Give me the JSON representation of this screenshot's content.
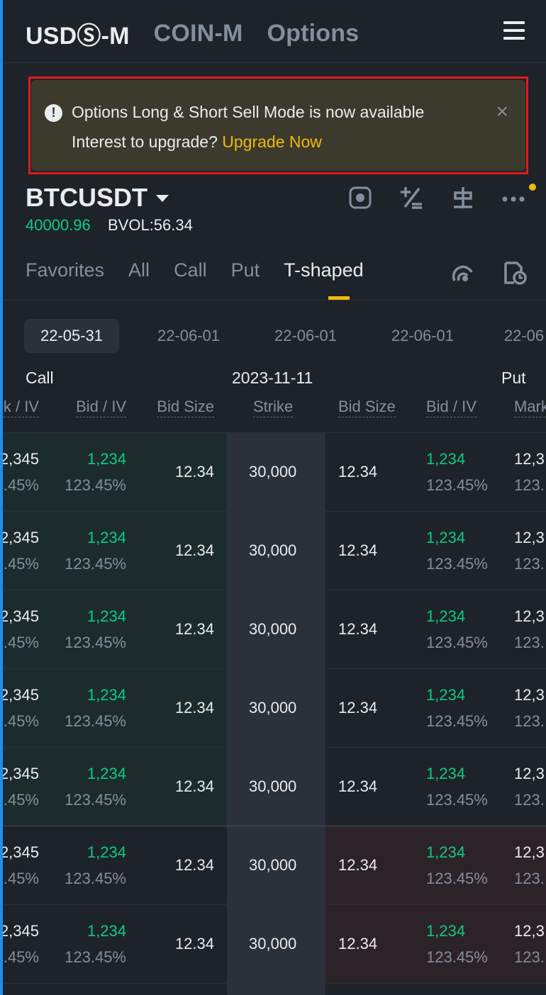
{
  "header": {
    "tabs": [
      "USDⓈ-M",
      "COIN-M",
      "Options"
    ]
  },
  "banner": {
    "message": "Options Long & Short Sell Mode is now available",
    "prompt": "Interest to upgrade? ",
    "link": "Upgrade Now",
    "close": "×"
  },
  "symbol": {
    "name": "BTCUSDT",
    "price": "40000.96",
    "bvol": "BVOL:56.34"
  },
  "sub_tabs": [
    "Favorites",
    "All",
    "Call",
    "Put",
    "T-shaped"
  ],
  "dates": [
    "22-05-31",
    "22-06-01",
    "22-06-01",
    "22-06-01",
    "22-06"
  ],
  "table": {
    "call_label": "Call",
    "expiry": "2023-11-11",
    "put_label": "Put",
    "columns": [
      "k / IV",
      "Bid / IV",
      "Bid Size",
      "Strike",
      "Bid Size",
      "Bid / IV",
      "Mark"
    ],
    "rows": [
      {
        "mark": "2,345",
        "mark_iv": ".45%",
        "bid": "1,234",
        "bid_iv": "123.45%",
        "bid_size": "12.34",
        "strike": "30,000",
        "put_bid_size": "12.34",
        "put_bid": "1,234",
        "put_bid_iv": "123.45%",
        "put_mark": "12,3",
        "put_mark_iv": "123."
      },
      {
        "mark": "2,345",
        "mark_iv": ".45%",
        "bid": "1,234",
        "bid_iv": "123.45%",
        "bid_size": "12.34",
        "strike": "30,000",
        "put_bid_size": "12.34",
        "put_bid": "1,234",
        "put_bid_iv": "123.45%",
        "put_mark": "12,3",
        "put_mark_iv": "123."
      },
      {
        "mark": "2,345",
        "mark_iv": ".45%",
        "bid": "1,234",
        "bid_iv": "123.45%",
        "bid_size": "12.34",
        "strike": "30,000",
        "put_bid_size": "12.34",
        "put_bid": "1,234",
        "put_bid_iv": "123.45%",
        "put_mark": "12,3",
        "put_mark_iv": "123."
      },
      {
        "mark": "2,345",
        "mark_iv": ".45%",
        "bid": "1,234",
        "bid_iv": "123.45%",
        "bid_size": "12.34",
        "strike": "30,000",
        "put_bid_size": "12.34",
        "put_bid": "1,234",
        "put_bid_iv": "123.45%",
        "put_mark": "12,3",
        "put_mark_iv": "123."
      },
      {
        "mark": "2,345",
        "mark_iv": ".45%",
        "bid": "1,234",
        "bid_iv": "123.45%",
        "bid_size": "12.34",
        "strike": "30,000",
        "put_bid_size": "12.34",
        "put_bid": "1,234",
        "put_bid_iv": "123.45%",
        "put_mark": "12,3",
        "put_mark_iv": "123."
      },
      {
        "mark": "2,345",
        "mark_iv": ".45%",
        "bid": "1,234",
        "bid_iv": "123.45%",
        "bid_size": "12.34",
        "strike": "30,000",
        "put_bid_size": "12.34",
        "put_bid": "1,234",
        "put_bid_iv": "123.45%",
        "put_mark": "12,3",
        "put_mark_iv": "123."
      },
      {
        "mark": "2,345",
        "mark_iv": ".45%",
        "bid": "1,234",
        "bid_iv": "123.45%",
        "bid_size": "12.34",
        "strike": "30,000",
        "put_bid_size": "12.34",
        "put_bid": "1,234",
        "put_bid_iv": "123.45%",
        "put_mark": "12,3",
        "put_mark_iv": "123."
      }
    ]
  },
  "colors": {
    "background": "#1e2329",
    "accent": "#f0b90b",
    "buy": "#0ecb81",
    "itm_call_tint": "#1c2c2c",
    "itm_put_tint": "#2c2329",
    "banner_highlight": "#e11a1a"
  },
  "icons": [
    "menu-icon",
    "warning-icon",
    "close-icon",
    "caret-down-icon",
    "target-icon",
    "plus-minus-icon",
    "crane-icon",
    "more-icon",
    "signal-icon",
    "clock-doc-icon"
  ]
}
